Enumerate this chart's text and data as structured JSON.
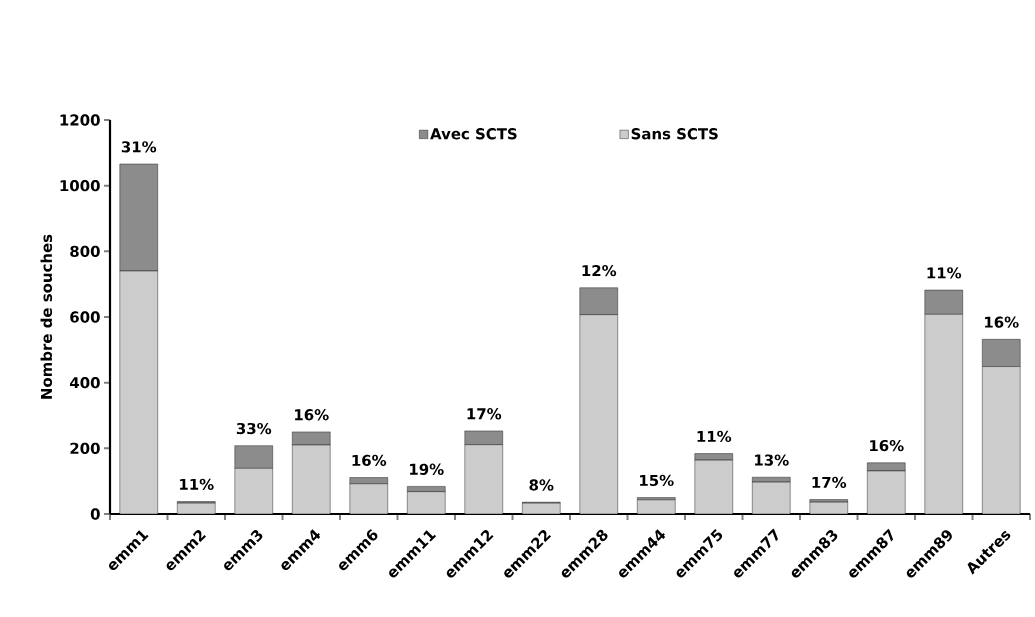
{
  "chart_data": {
    "type": "bar",
    "stacked": true,
    "ylabel": "Nombre de souches",
    "categories": [
      "emm1",
      "emm2",
      "emm3",
      "emm4",
      "emm6",
      "emm11",
      "emm12",
      "emm22",
      "emm28",
      "emm44",
      "emm75",
      "emm77",
      "emm83",
      "emm87",
      "emm89",
      "Autres"
    ],
    "series": [
      {
        "name": "Sans SCTS",
        "color": "#cccccc",
        "values": [
          740,
          33,
          139,
          210,
          92,
          68,
          211,
          33,
          607,
          43,
          164,
          97,
          36,
          131,
          608,
          449
        ]
      },
      {
        "name": "Avec SCTS",
        "color": "#8c8c8c",
        "values": [
          326,
          5,
          69,
          40,
          19,
          16,
          42,
          3,
          82,
          7,
          20,
          15,
          8,
          25,
          74,
          83
        ]
      }
    ],
    "annotations": [
      {
        "text": "31%",
        "x": "emm1",
        "y": 1066
      },
      {
        "text": "11%",
        "x": "emm2",
        "y": 38
      },
      {
        "text": "33%",
        "x": "emm3",
        "y": 208
      },
      {
        "text": "16%",
        "x": "emm4",
        "y": 250
      },
      {
        "text": "16%",
        "x": "emm6",
        "y": 111
      },
      {
        "text": "19%",
        "x": "emm11",
        "y": 84
      },
      {
        "text": "17%",
        "x": "emm12",
        "y": 253
      },
      {
        "text": "8%",
        "x": "emm22",
        "y": 36
      },
      {
        "text": "12%",
        "x": "emm28",
        "y": 689
      },
      {
        "text": "15%",
        "x": "emm44",
        "y": 50
      },
      {
        "text": "11%",
        "x": "emm75",
        "y": 184
      },
      {
        "text": "13%",
        "x": "emm77",
        "y": 112
      },
      {
        "text": "17%",
        "x": "emm83",
        "y": 44
      },
      {
        "text": "16%",
        "x": "emm87",
        "y": 156
      },
      {
        "text": "11%",
        "x": "emm89",
        "y": 682
      },
      {
        "text": "16%",
        "x": "Autres",
        "y": 532
      }
    ],
    "ylim": [
      0,
      1200
    ],
    "yticks": [
      0,
      200,
      400,
      600,
      800,
      1000,
      1200
    ],
    "grid": false,
    "legend": "top"
  }
}
